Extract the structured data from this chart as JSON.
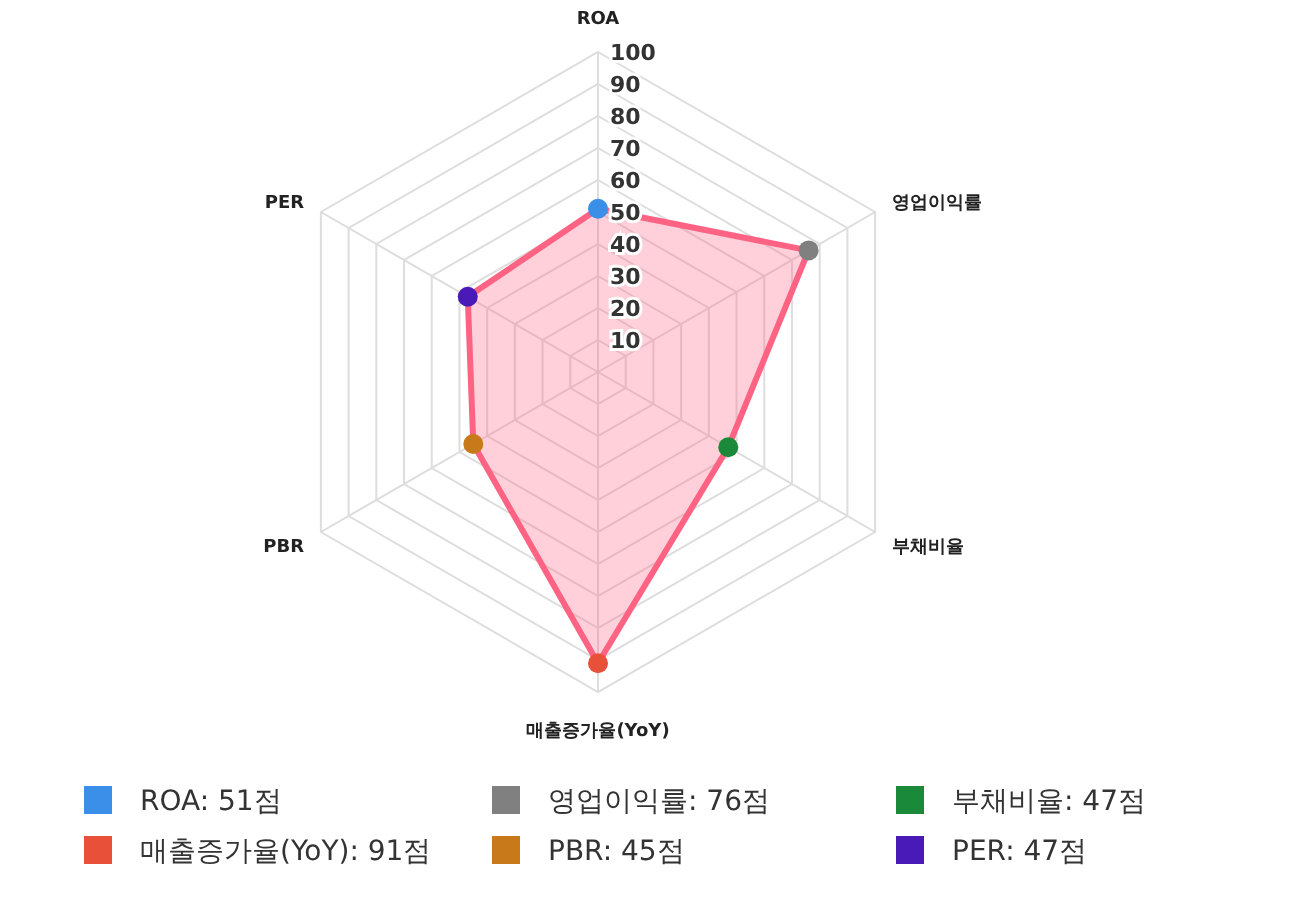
{
  "chart_data": {
    "type": "radar",
    "categories": [
      "ROA",
      "영업이익률",
      "부채비율",
      "매출증가율(YoY)",
      "PBR",
      "PER"
    ],
    "series": [
      {
        "color": "#ff6384",
        "values": [
          51,
          76,
          47,
          91,
          45,
          47
        ]
      }
    ],
    "colors": [
      "#3b8fe8",
      "#808080",
      "#1a8a3a",
      "#e8503a",
      "#c87a1a",
      "#4a1ab8"
    ],
    "annotations": [
      "ROA: 51점",
      "영업이익률: 76점",
      "부채비율: 47점",
      "매출증가율(YoY): 91점",
      "PBR: 45점",
      "PER: 47점"
    ],
    "ylim": [
      0,
      100
    ],
    "yticks": [
      10,
      20,
      30,
      40,
      50,
      60,
      70,
      80,
      90,
      100
    ],
    "grid": true,
    "marker": "circle"
  }
}
